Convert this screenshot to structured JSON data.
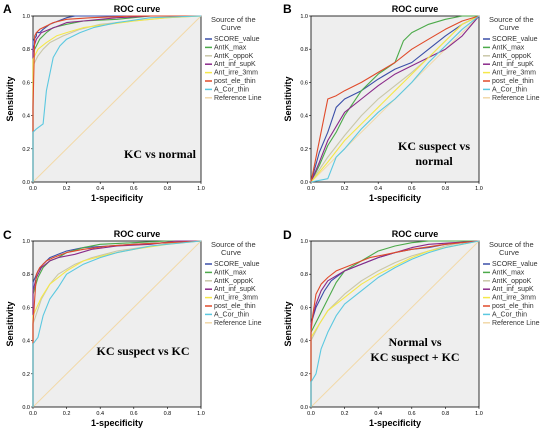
{
  "colors": {
    "plot_bg": "#eeeeee",
    "reference": "#f2d9a8"
  },
  "chart_data": [
    {
      "type": "line",
      "panel_label": "A",
      "title": "ROC curve",
      "xlabel": "1-specificity",
      "ylabel": "Sensitivity",
      "xlim": [
        0,
        1
      ],
      "ylim": [
        0,
        1
      ],
      "xticks": [
        "0.0",
        "0.2",
        "0.4",
        "0.6",
        "0.8",
        "1.0"
      ],
      "yticks": [
        "0.0",
        "0.2",
        "0.4",
        "0.6",
        "0.8",
        "1.0"
      ],
      "legend_title": "Source of the Curve",
      "annotation": [
        "KC vs normal"
      ],
      "reference_line": "Reference Line",
      "series": [
        {
          "name": "SCORE_value",
          "color": "#3b4fa8",
          "x": [
            0,
            0,
            0.02,
            0.02,
            0.04,
            0.06,
            0.1,
            0.15,
            0.2,
            0.25,
            0.4,
            0.6,
            0.8,
            1
          ],
          "y": [
            0,
            0.85,
            0.88,
            0.9,
            0.9,
            0.92,
            0.95,
            0.97,
            0.99,
            1,
            1,
            1,
            1,
            1
          ]
        },
        {
          "name": "AntK_max",
          "color": "#4caa4a",
          "x": [
            0,
            0,
            0.02,
            0.04,
            0.08,
            0.12,
            0.2,
            0.3,
            0.5,
            0.7,
            1
          ],
          "y": [
            0,
            0.78,
            0.82,
            0.86,
            0.9,
            0.93,
            0.95,
            0.97,
            0.98,
            1,
            1
          ]
        },
        {
          "name": "AntK_oppoK",
          "color": "#c9c7a8",
          "x": [
            0,
            0,
            0.03,
            0.06,
            0.1,
            0.18,
            0.28,
            0.4,
            0.6,
            0.8,
            1
          ],
          "y": [
            0,
            0.7,
            0.76,
            0.8,
            0.84,
            0.88,
            0.92,
            0.95,
            0.97,
            0.99,
            1
          ]
        },
        {
          "name": "Ant_inf_supK",
          "color": "#8a2a8a",
          "x": [
            0,
            0,
            0.02,
            0.05,
            0.1,
            0.15,
            0.2,
            0.3,
            0.5,
            0.7,
            1
          ],
          "y": [
            0,
            0.8,
            0.86,
            0.9,
            0.92,
            0.94,
            0.96,
            0.97,
            0.99,
            1,
            1
          ]
        },
        {
          "name": "Ant_irre_3mm",
          "color": "#f5e84a",
          "x": [
            0,
            0,
            0.03,
            0.08,
            0.14,
            0.2,
            0.3,
            0.45,
            0.6,
            0.8,
            1
          ],
          "y": [
            0,
            0.74,
            0.8,
            0.84,
            0.88,
            0.9,
            0.93,
            0.95,
            0.97,
            0.99,
            1
          ]
        },
        {
          "name": "post_ele_thin",
          "color": "#e04a2a",
          "x": [
            0,
            0,
            0.01,
            0.02,
            0.04,
            0.08,
            0.12,
            0.2,
            0.35,
            0.6,
            1
          ],
          "y": [
            0,
            0.45,
            0.88,
            0.9,
            0.92,
            0.94,
            0.96,
            0.98,
            0.99,
            1,
            1
          ]
        },
        {
          "name": "A_Cor_thin",
          "color": "#5bc8e0",
          "x": [
            0,
            0,
            0.02,
            0.06,
            0.08,
            0.12,
            0.16,
            0.2,
            0.28,
            0.36,
            0.5,
            0.7,
            1
          ],
          "y": [
            0,
            0.3,
            0.32,
            0.35,
            0.55,
            0.75,
            0.82,
            0.86,
            0.9,
            0.93,
            0.96,
            0.99,
            1
          ]
        }
      ]
    },
    {
      "type": "line",
      "panel_label": "B",
      "title": "ROC curve",
      "xlabel": "1-specificity",
      "ylabel": "Sensitivity",
      "xlim": [
        0,
        1
      ],
      "ylim": [
        0,
        1
      ],
      "xticks": [
        "0.0",
        "0.2",
        "0.4",
        "0.6",
        "0.8",
        "1.0"
      ],
      "yticks": [
        "0.0",
        "0.2",
        "0.4",
        "0.6",
        "0.8",
        "1.0"
      ],
      "legend_title": "Source of the Curve",
      "annotation": [
        "KC suspect vs",
        "normal"
      ],
      "reference_line": "Reference Line",
      "series": [
        {
          "name": "SCORE_value",
          "color": "#3b4fa8",
          "x": [
            0,
            0.05,
            0.1,
            0.15,
            0.2,
            0.3,
            0.4,
            0.5,
            0.6,
            0.7,
            0.8,
            0.9,
            1
          ],
          "y": [
            0,
            0.18,
            0.3,
            0.45,
            0.5,
            0.55,
            0.62,
            0.68,
            0.72,
            0.8,
            0.88,
            0.95,
            1
          ]
        },
        {
          "name": "AntK_max",
          "color": "#4caa4a",
          "x": [
            0,
            0.05,
            0.1,
            0.15,
            0.2,
            0.3,
            0.4,
            0.5,
            0.55,
            0.6,
            0.7,
            0.8,
            0.9,
            1
          ],
          "y": [
            0,
            0.1,
            0.22,
            0.3,
            0.4,
            0.55,
            0.65,
            0.72,
            0.85,
            0.9,
            0.95,
            0.98,
            1,
            1
          ]
        },
        {
          "name": "AntK_oppoK",
          "color": "#c9c7a8",
          "x": [
            0,
            0.1,
            0.2,
            0.3,
            0.4,
            0.5,
            0.6,
            0.7,
            0.8,
            0.9,
            1
          ],
          "y": [
            0,
            0.15,
            0.28,
            0.4,
            0.5,
            0.58,
            0.66,
            0.75,
            0.85,
            0.95,
            1
          ]
        },
        {
          "name": "Ant_inf_supK",
          "color": "#8a2a8a",
          "x": [
            0,
            0.05,
            0.1,
            0.2,
            0.3,
            0.4,
            0.5,
            0.6,
            0.7,
            0.8,
            0.9,
            1
          ],
          "y": [
            0,
            0.12,
            0.25,
            0.42,
            0.5,
            0.58,
            0.65,
            0.7,
            0.75,
            0.8,
            0.88,
            1
          ]
        },
        {
          "name": "Ant_irre_3mm",
          "color": "#f5e84a",
          "x": [
            0,
            0.1,
            0.2,
            0.3,
            0.4,
            0.5,
            0.6,
            0.7,
            0.8,
            0.9,
            1
          ],
          "y": [
            0,
            0.12,
            0.25,
            0.35,
            0.45,
            0.55,
            0.65,
            0.75,
            0.85,
            0.95,
            1
          ]
        },
        {
          "name": "post_ele_thin",
          "color": "#e04a2a",
          "x": [
            0,
            0.02,
            0.05,
            0.08,
            0.1,
            0.15,
            0.2,
            0.3,
            0.4,
            0.5,
            0.6,
            0.7,
            0.8,
            0.9,
            1
          ],
          "y": [
            0,
            0.1,
            0.25,
            0.4,
            0.5,
            0.52,
            0.55,
            0.6,
            0.66,
            0.72,
            0.8,
            0.86,
            0.92,
            0.97,
            1
          ]
        },
        {
          "name": "A_Cor_thin",
          "color": "#5bc8e0",
          "x": [
            0,
            0.1,
            0.15,
            0.2,
            0.3,
            0.4,
            0.5,
            0.6,
            0.7,
            0.8,
            0.9,
            1
          ],
          "y": [
            0,
            0.02,
            0.15,
            0.2,
            0.32,
            0.42,
            0.5,
            0.6,
            0.72,
            0.82,
            0.92,
            1
          ]
        }
      ]
    },
    {
      "type": "line",
      "panel_label": "C",
      "title": "ROC curve",
      "xlabel": "1-specificity",
      "ylabel": "Sensitivity",
      "xlim": [
        0,
        1
      ],
      "ylim": [
        0,
        1
      ],
      "xticks": [
        "0.0",
        "0.2",
        "0.4",
        "0.6",
        "0.8",
        "1.0"
      ],
      "yticks": [
        "0.0",
        "0.2",
        "0.4",
        "0.6",
        "0.8",
        "1.0"
      ],
      "legend_title": "Source of the Curve",
      "annotation": [
        "KC suspect vs KC"
      ],
      "reference_line": "Reference Line",
      "series": [
        {
          "name": "SCORE_value",
          "color": "#3b4fa8",
          "x": [
            0,
            0,
            0.03,
            0.06,
            0.1,
            0.15,
            0.2,
            0.3,
            0.45,
            0.6,
            0.8,
            1
          ],
          "y": [
            0,
            0.75,
            0.82,
            0.86,
            0.9,
            0.92,
            0.94,
            0.96,
            0.97,
            0.98,
            0.99,
            1
          ]
        },
        {
          "name": "AntK_max",
          "color": "#4caa4a",
          "x": [
            0,
            0,
            0.03,
            0.06,
            0.1,
            0.15,
            0.2,
            0.3,
            0.4,
            0.6,
            0.8,
            1
          ],
          "y": [
            0,
            0.68,
            0.78,
            0.84,
            0.88,
            0.9,
            0.93,
            0.96,
            0.98,
            0.99,
            1,
            1
          ]
        },
        {
          "name": "AntK_oppoK",
          "color": "#c9c7a8",
          "x": [
            0,
            0,
            0.05,
            0.1,
            0.15,
            0.25,
            0.35,
            0.5,
            0.7,
            0.85,
            1
          ],
          "y": [
            0,
            0.5,
            0.65,
            0.74,
            0.8,
            0.86,
            0.9,
            0.94,
            0.97,
            0.99,
            1
          ]
        },
        {
          "name": "Ant_inf_supK",
          "color": "#8a2a8a",
          "x": [
            0,
            0,
            0.02,
            0.05,
            0.1,
            0.15,
            0.25,
            0.35,
            0.5,
            0.7,
            0.85,
            1
          ],
          "y": [
            0,
            0.7,
            0.78,
            0.84,
            0.88,
            0.9,
            0.92,
            0.95,
            0.97,
            0.98,
            1,
            1
          ]
        },
        {
          "name": "Ant_irre_3mm",
          "color": "#f5e84a",
          "x": [
            0,
            0,
            0.05,
            0.1,
            0.2,
            0.3,
            0.45,
            0.6,
            0.8,
            1
          ],
          "y": [
            0,
            0.55,
            0.66,
            0.74,
            0.82,
            0.88,
            0.92,
            0.95,
            0.98,
            1
          ]
        },
        {
          "name": "post_ele_thin",
          "color": "#e04a2a",
          "x": [
            0,
            0,
            0.02,
            0.04,
            0.08,
            0.12,
            0.2,
            0.3,
            0.45,
            0.6,
            0.8,
            1
          ],
          "y": [
            0,
            0.5,
            0.8,
            0.84,
            0.88,
            0.9,
            0.93,
            0.95,
            0.97,
            0.98,
            0.99,
            1
          ]
        },
        {
          "name": "A_Cor_thin",
          "color": "#5bc8e0",
          "x": [
            0,
            0,
            0.03,
            0.06,
            0.1,
            0.15,
            0.2,
            0.3,
            0.4,
            0.5,
            0.7,
            1
          ],
          "y": [
            0,
            0.38,
            0.42,
            0.55,
            0.65,
            0.72,
            0.8,
            0.86,
            0.9,
            0.93,
            0.97,
            1
          ]
        }
      ]
    },
    {
      "type": "line",
      "panel_label": "D",
      "title": "ROC curve",
      "xlabel": "1-specificity",
      "ylabel": "Sensitivity",
      "xlim": [
        0,
        1
      ],
      "ylim": [
        0,
        1
      ],
      "xticks": [
        "0.0",
        "0.2",
        "0.4",
        "0.6",
        "0.8",
        "1.0"
      ],
      "yticks": [
        "0.0",
        "0.2",
        "0.4",
        "0.6",
        "0.8",
        "1.0"
      ],
      "legend_title": "Source of the Curve",
      "annotation": [
        "Normal vs",
        "KC suspect + KC"
      ],
      "reference_line": "Reference Line",
      "series": [
        {
          "name": "SCORE_value",
          "color": "#3b4fa8",
          "x": [
            0,
            0,
            0.03,
            0.08,
            0.12,
            0.2,
            0.3,
            0.4,
            0.5,
            0.6,
            0.7,
            0.8,
            0.9,
            1
          ],
          "y": [
            0,
            0.5,
            0.6,
            0.7,
            0.76,
            0.82,
            0.86,
            0.9,
            0.93,
            0.95,
            0.96,
            0.98,
            0.99,
            1
          ]
        },
        {
          "name": "AntK_max",
          "color": "#4caa4a",
          "x": [
            0,
            0,
            0.05,
            0.1,
            0.15,
            0.2,
            0.3,
            0.4,
            0.5,
            0.6,
            0.7,
            0.8,
            1
          ],
          "y": [
            0,
            0.45,
            0.55,
            0.65,
            0.75,
            0.82,
            0.88,
            0.94,
            0.97,
            0.99,
            1,
            1,
            1
          ]
        },
        {
          "name": "AntK_oppoK",
          "color": "#c9c7a8",
          "x": [
            0,
            0,
            0.05,
            0.1,
            0.2,
            0.3,
            0.4,
            0.5,
            0.6,
            0.7,
            0.8,
            0.9,
            1
          ],
          "y": [
            0,
            0.4,
            0.5,
            0.58,
            0.68,
            0.76,
            0.82,
            0.87,
            0.91,
            0.94,
            0.97,
            0.99,
            1
          ]
        },
        {
          "name": "Ant_inf_supK",
          "color": "#8a2a8a",
          "x": [
            0,
            0,
            0.03,
            0.06,
            0.1,
            0.2,
            0.3,
            0.4,
            0.5,
            0.6,
            0.7,
            0.85,
            1
          ],
          "y": [
            0,
            0.5,
            0.62,
            0.7,
            0.76,
            0.82,
            0.86,
            0.9,
            0.93,
            0.96,
            0.98,
            0.99,
            1
          ]
        },
        {
          "name": "Ant_irre_3mm",
          "color": "#f5e84a",
          "x": [
            0,
            0,
            0.05,
            0.1,
            0.2,
            0.3,
            0.4,
            0.5,
            0.6,
            0.7,
            0.8,
            0.9,
            1
          ],
          "y": [
            0,
            0.42,
            0.5,
            0.58,
            0.66,
            0.74,
            0.8,
            0.85,
            0.9,
            0.94,
            0.96,
            0.98,
            1
          ]
        },
        {
          "name": "post_ele_thin",
          "color": "#e04a2a",
          "x": [
            0,
            0,
            0.01,
            0.03,
            0.06,
            0.1,
            0.15,
            0.25,
            0.35,
            0.5,
            0.6,
            0.8,
            1
          ],
          "y": [
            0,
            0.45,
            0.55,
            0.68,
            0.74,
            0.78,
            0.82,
            0.86,
            0.9,
            0.93,
            0.95,
            0.98,
            1
          ]
        },
        {
          "name": "A_Cor_thin",
          "color": "#5bc8e0",
          "x": [
            0,
            0,
            0.03,
            0.06,
            0.1,
            0.15,
            0.2,
            0.3,
            0.4,
            0.5,
            0.6,
            0.7,
            0.8,
            1
          ],
          "y": [
            0,
            0.15,
            0.2,
            0.35,
            0.45,
            0.55,
            0.62,
            0.7,
            0.78,
            0.84,
            0.89,
            0.93,
            0.96,
            1
          ]
        }
      ]
    }
  ]
}
